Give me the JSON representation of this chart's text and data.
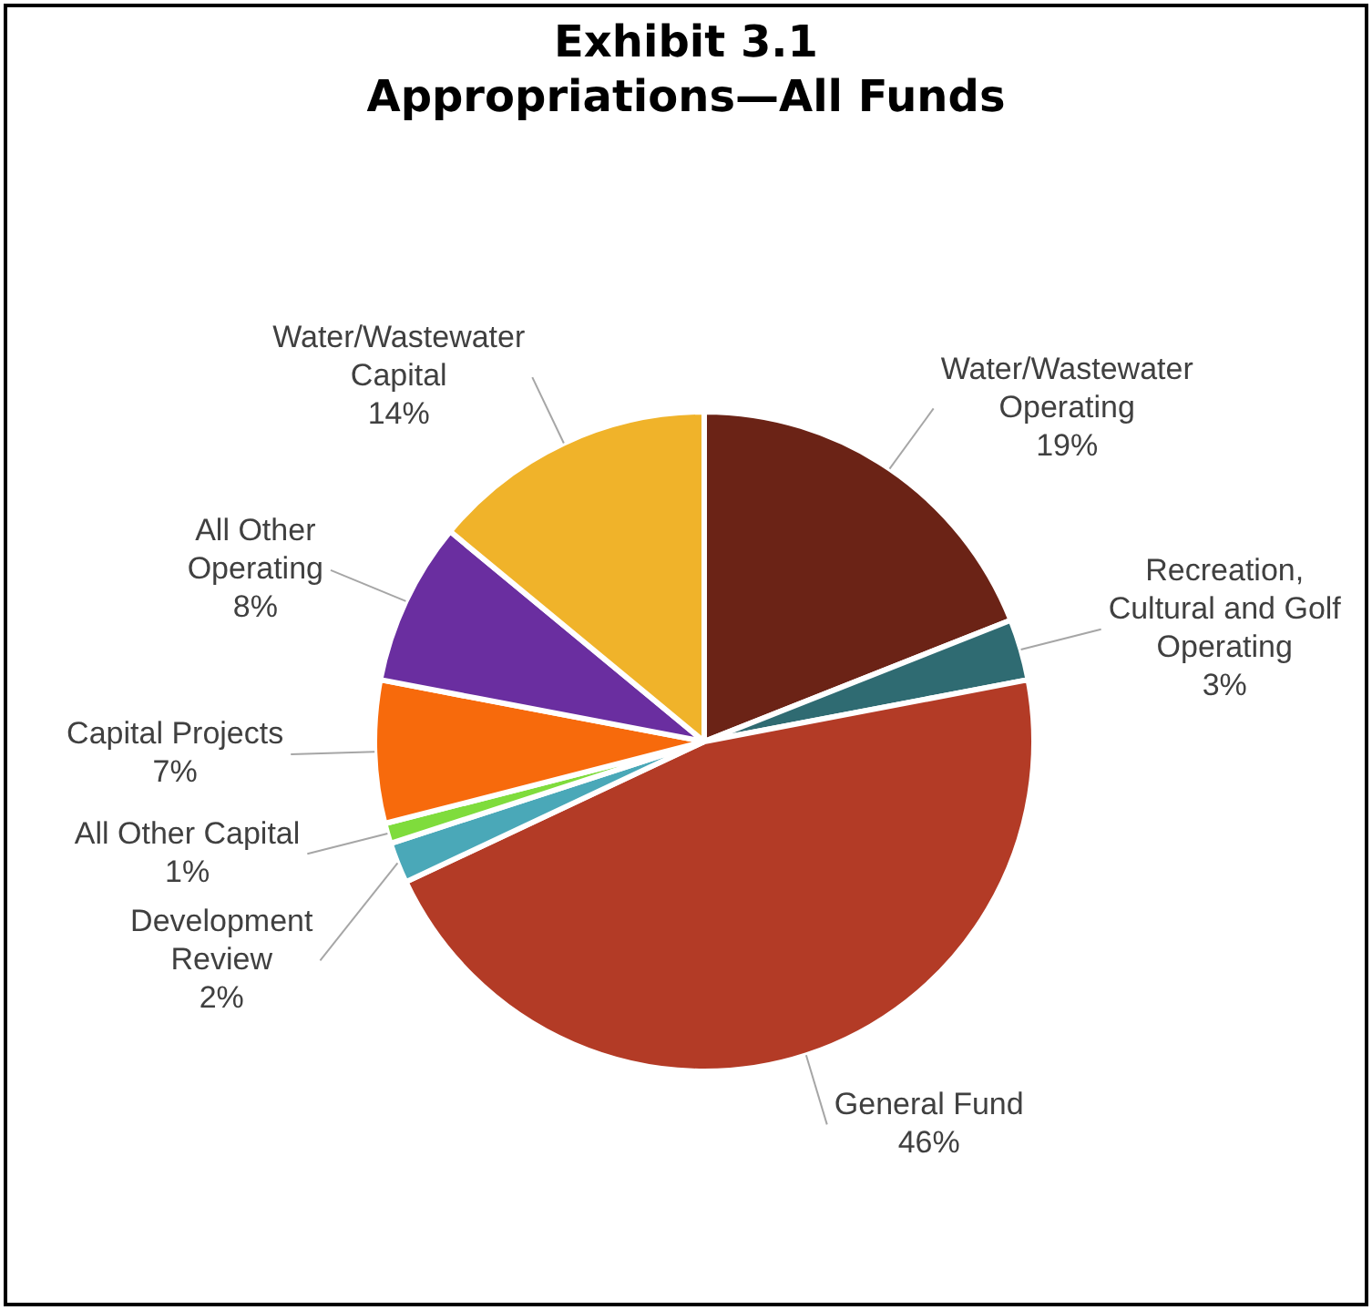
{
  "chart_data": {
    "type": "pie",
    "title": "Exhibit 3.1\nAppropriations—All Funds",
    "categories": [
      "Water/Wastewater Operating",
      "Recreation, Cultural and Golf Operating",
      "General Fund",
      "Development Review",
      "All Other Capital",
      "Capital Projects",
      "All Other Operating",
      "Water/Wastewater Capital"
    ],
    "values": [
      19,
      3,
      46,
      2,
      1,
      7,
      8,
      14
    ],
    "value_labels": [
      "19%",
      "3%",
      "46%",
      "2%",
      "1%",
      "7%",
      "8%",
      "14%"
    ],
    "colors": [
      "#6b2316",
      "#2f6b72",
      "#b33b26",
      "#4aa8b8",
      "#7fdc3c",
      "#f76a0c",
      "#6a2ea0",
      "#f0b32a"
    ],
    "legend": false
  }
}
